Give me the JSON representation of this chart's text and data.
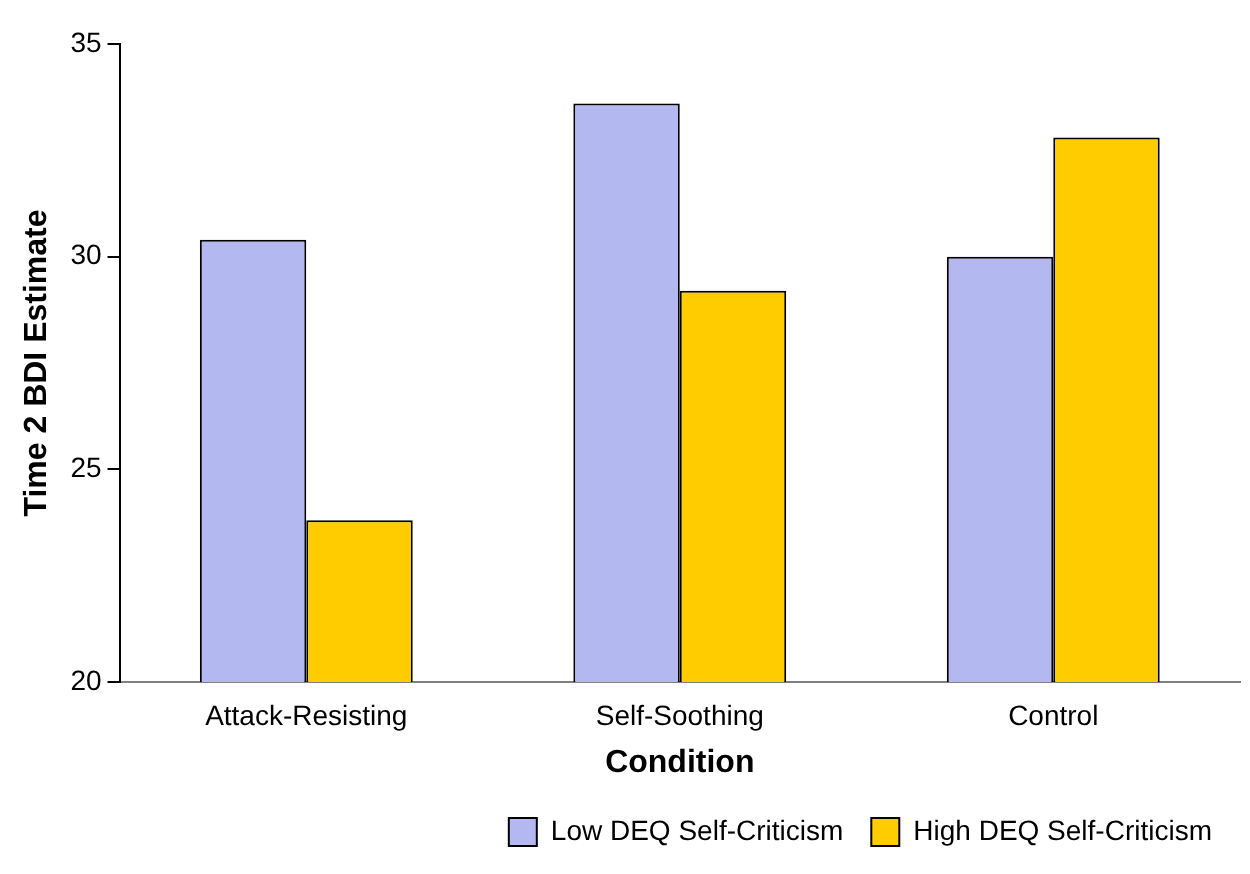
{
  "chart_data": {
    "type": "bar",
    "xlabel": "Condition",
    "ylabel": "Time 2 BDI Estimate",
    "categories": [
      "Attack-Resisting",
      "Self-Soothing",
      "Control"
    ],
    "series": [
      {
        "name": "Low DEQ Self-Criticism",
        "color": "#b4b8f0",
        "values": [
          30.4,
          33.6,
          30.0
        ]
      },
      {
        "name": "High DEQ Self-Criticism",
        "color": "#ffcc00",
        "values": [
          23.8,
          29.2,
          32.8
        ]
      }
    ],
    "ylim": [
      20,
      35
    ],
    "yticks": [
      20,
      25,
      30,
      35
    ],
    "grid": false,
    "legend": "bottom"
  }
}
